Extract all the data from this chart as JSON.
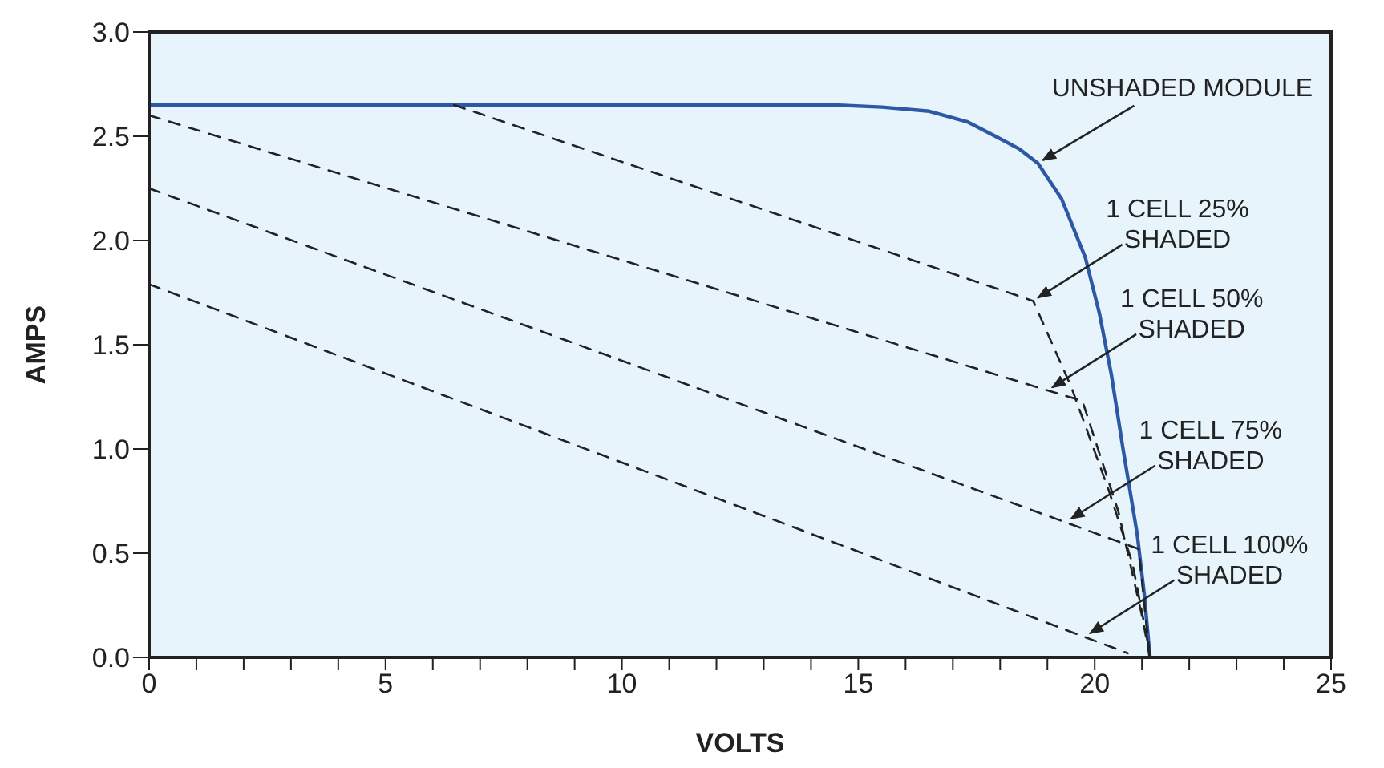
{
  "chart_data": {
    "type": "line",
    "xlabel": "VOLTS",
    "ylabel": "AMPS",
    "xlim": [
      0,
      25
    ],
    "ylim": [
      0,
      3.0
    ],
    "xticks": [
      0,
      {
        "value": 1,
        "label": null
      },
      {
        "value": 2,
        "label": null
      },
      {
        "value": 3,
        "label": null
      },
      {
        "value": 4,
        "label": null
      },
      5,
      {
        "value": 6,
        "label": null
      },
      {
        "value": 7,
        "label": null
      },
      {
        "value": 8,
        "label": null
      },
      {
        "value": 9,
        "label": null
      },
      10,
      {
        "value": 11,
        "label": null
      },
      {
        "value": 12,
        "label": null
      },
      {
        "value": 13,
        "label": null
      },
      {
        "value": 14,
        "label": null
      },
      15,
      {
        "value": 16,
        "label": null
      },
      {
        "value": 17,
        "label": null
      },
      {
        "value": 18,
        "label": null
      },
      {
        "value": 19,
        "label": null
      },
      20,
      {
        "value": 21,
        "label": null
      },
      {
        "value": 22,
        "label": null
      },
      {
        "value": 23,
        "label": null
      },
      {
        "value": 24,
        "label": null
      },
      25
    ],
    "yticks": [
      {
        "value": 0,
        "label": "0.0"
      },
      0.5,
      {
        "value": 1,
        "label": "1.0"
      },
      1.5,
      {
        "value": 2,
        "label": "2.0"
      },
      2.5,
      {
        "value": 3,
        "label": "3.0"
      }
    ],
    "marker": "none",
    "series": [
      {
        "color": "#2c58a6",
        "line_style": "solid",
        "x": [
          0,
          5,
          10,
          14.5,
          15.5,
          16.5,
          17.3,
          17.9,
          18.4,
          18.8,
          19.3,
          19.8,
          20.1,
          20.35,
          20.6,
          20.9,
          21.05,
          21.17
        ],
        "values": [
          2.65,
          2.65,
          2.65,
          2.65,
          2.64,
          2.62,
          2.57,
          2.5,
          2.44,
          2.37,
          2.2,
          1.92,
          1.65,
          1.36,
          1.0,
          0.59,
          0.3,
          0
        ]
      },
      {
        "color": "#222222",
        "line_style": "dashed",
        "x": [
          6.45,
          18.7,
          19.5,
          20.3,
          20.8,
          21.1,
          21.17
        ],
        "values": [
          2.65,
          1.71,
          1.3,
          0.8,
          0.45,
          0.1,
          0
        ]
      },
      {
        "color": "#222222",
        "line_style": "dashed",
        "x": [
          0,
          19.74,
          20.5,
          21.0,
          21.17
        ],
        "values": [
          2.6,
          1.23,
          0.7,
          0.2,
          0
        ]
      },
      {
        "color": "#222222",
        "line_style": "dashed",
        "x": [
          0,
          20.93,
          21.1,
          21.17
        ],
        "values": [
          2.25,
          0.52,
          0.15,
          0
        ]
      },
      {
        "color": "#222222",
        "line_style": "dashed",
        "x": [
          0,
          20.7
        ],
        "values": [
          1.79,
          0.02
        ]
      }
    ],
    "annotations": [
      {
        "text": "UNSHADED MODULE",
        "x": 18.8,
        "y": 2.37
      },
      {
        "text": "1 CELL 25%\nSHADED",
        "x": 18.7,
        "y": 1.71
      },
      {
        "text": "1 CELL 50%\nSHADED",
        "x": 19.0,
        "y": 1.28
      },
      {
        "text": "1 CELL 75%\nSHADED",
        "x": 19.4,
        "y": 0.65
      },
      {
        "text": "1 CELL 100%\nSHADED",
        "x": 19.8,
        "y": 0.1
      }
    ]
  }
}
